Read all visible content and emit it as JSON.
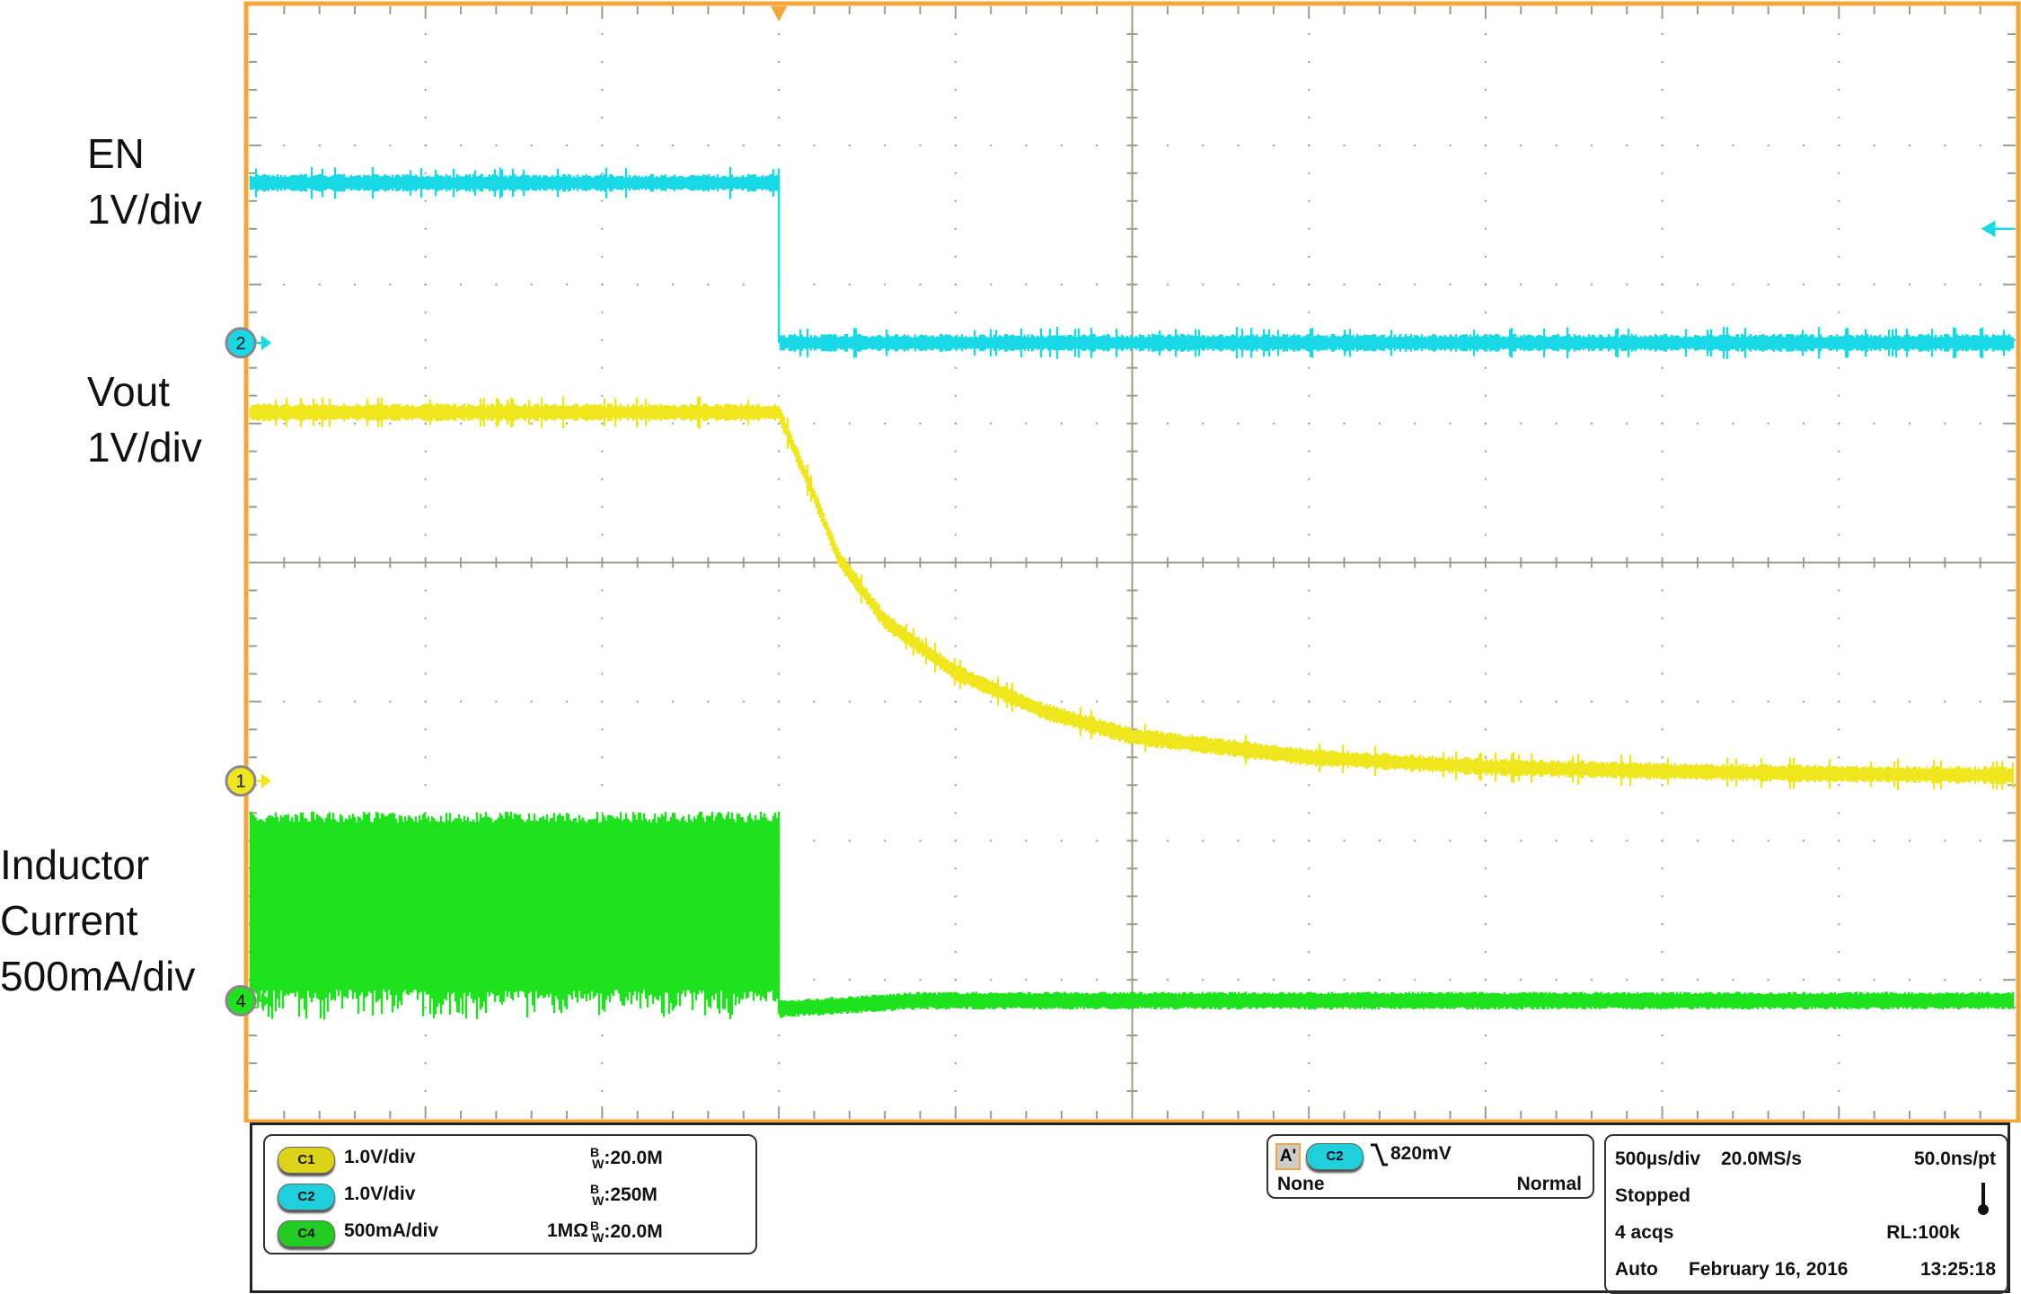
{
  "labels": {
    "en": [
      "EN",
      "1V/div"
    ],
    "vout": [
      "Vout",
      "1V/div"
    ],
    "il": [
      "Inductor",
      "Current",
      "500mA/div"
    ]
  },
  "colors": {
    "frame": "#f5a638",
    "ch1": "#f0e61e",
    "ch2": "#19d9e6",
    "ch4": "#1ee21e",
    "grid": "#a09a8c"
  },
  "chart_data": {
    "type": "line",
    "xlabel": "",
    "ylabel": "",
    "x_unit": "ms",
    "xlim": [
      -1.5,
      3.5
    ],
    "x_divisions": 10,
    "y_divisions": 8,
    "grid": true,
    "trigger_time": 0,
    "series": [
      {
        "channel": "2",
        "scale_per_div": 1.0,
        "unit": "V",
        "color": "#19d9e6",
        "x": [
          -1.5,
          0,
          0,
          3.5
        ],
        "y": [
          1.15,
          1.15,
          0.0,
          0.0
        ]
      },
      {
        "channel": "1",
        "scale_per_div": 1.0,
        "unit": "V",
        "color": "#f0e61e",
        "x": [
          -1.5,
          0,
          0.1,
          0.17,
          0.3,
          0.5,
          0.75,
          1.0,
          1.5,
          2.0,
          2.5,
          3.0,
          3.5
        ],
        "y": [
          2.65,
          2.65,
          2.05,
          1.6,
          1.15,
          0.78,
          0.5,
          0.32,
          0.17,
          0.1,
          0.07,
          0.05,
          0.04
        ]
      },
      {
        "channel": "4",
        "scale_per_div": 0.5,
        "unit": "A",
        "color": "#1ee21e",
        "x": [
          -1.5,
          0,
          0,
          3.5
        ],
        "ripple_max": [
          0.68,
          0.68,
          0,
          0
        ],
        "ripple_min": [
          0.0,
          0.0,
          -0.03,
          0.0
        ],
        "spike_min": -0.07
      }
    ],
    "reference_levels_div": {
      "1": -1.57,
      "2": 1.58,
      "4": -3.15
    },
    "trigger_level_V": 0.82
  },
  "channels": [
    {
      "id": "C1",
      "scale": "1.0V/div",
      "impedance": "",
      "bw": ":20.0M"
    },
    {
      "id": "C2",
      "scale": "1.0V/div",
      "impedance": "",
      "bw": ":250M"
    },
    {
      "id": "C4",
      "scale": "500mA/div",
      "impedance": "1MΩ",
      "bw": ":20.0M"
    }
  ],
  "bw_prefix": [
    "B",
    "W"
  ],
  "trigger": {
    "mode_badge": "A'",
    "source": "C2",
    "slope_icon": "falling-edge",
    "level": "820mV",
    "coupling": "None",
    "mode": "Normal"
  },
  "acq": {
    "timebase": "500µs/div",
    "sample_rate": "20.0MS/s",
    "resolution": "50.0ns/pt",
    "state": "Stopped",
    "acqs": "4 acqs",
    "record_length": "RL:100k",
    "auto": "Auto",
    "date": "February 16, 2016",
    "time": "13:25:18"
  }
}
